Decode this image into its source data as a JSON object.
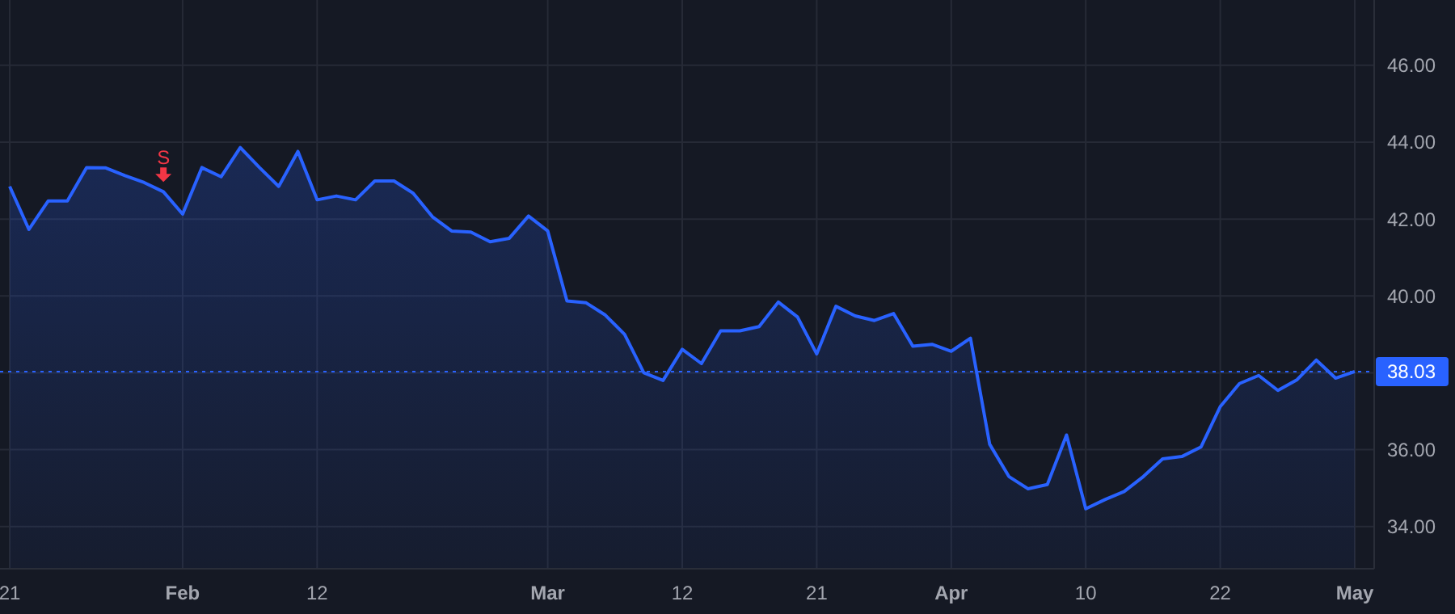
{
  "chart_data": {
    "type": "area",
    "categories": [
      "21",
      null,
      null,
      null,
      null,
      null,
      null,
      null,
      null,
      "Feb",
      null,
      null,
      null,
      null,
      null,
      null,
      "12",
      null,
      null,
      null,
      null,
      null,
      null,
      null,
      null,
      null,
      null,
      null,
      "Mar",
      null,
      null,
      null,
      null,
      null,
      null,
      "12",
      null,
      null,
      null,
      null,
      null,
      null,
      "21",
      null,
      null,
      null,
      null,
      null,
      null,
      "Apr",
      null,
      null,
      null,
      null,
      null,
      null,
      "10",
      null,
      null,
      null,
      null,
      null,
      null,
      "22",
      null,
      null,
      null,
      null,
      null,
      null,
      "May"
    ],
    "series": [
      {
        "color": "#2962ff",
        "values": [
          42.85,
          41.73,
          42.47,
          42.47,
          43.34,
          43.33,
          43.13,
          42.95,
          42.71,
          42.13,
          43.34,
          43.1,
          43.86,
          43.34,
          42.85,
          43.76,
          42.5,
          42.6,
          42.5,
          42.99,
          42.99,
          42.67,
          42.06,
          41.69,
          41.66,
          41.41,
          41.5,
          42.08,
          41.69,
          39.87,
          39.82,
          39.5,
          39.0,
          38.0,
          37.8,
          38.61,
          38.24,
          39.09,
          39.09,
          39.2,
          39.84,
          39.45,
          38.49,
          39.73,
          39.48,
          39.36,
          39.54,
          38.69,
          38.74,
          38.56,
          38.9,
          36.14,
          35.3,
          34.98,
          35.09,
          36.38,
          34.46,
          34.7,
          34.91,
          35.3,
          35.76,
          35.82,
          36.07,
          37.12,
          37.72,
          37.93,
          37.54,
          37.82,
          38.33,
          37.86,
          38.03
        ]
      }
    ],
    "ylim": [
      32.9,
      47.7
    ],
    "yticks": [
      {
        "value": 34,
        "label": "34.00"
      },
      {
        "value": 36,
        "label": "36.00"
      },
      {
        "value": 38,
        "label": null
      },
      {
        "value": 40,
        "label": "40.00"
      },
      {
        "value": 42,
        "label": "42.00"
      },
      {
        "value": 44,
        "label": "44.00"
      },
      {
        "value": 46,
        "label": "46.00"
      }
    ],
    "grid": true,
    "line_style": "solid",
    "ref_lines": [
      {
        "axis": "y",
        "value": 38.03,
        "label": "38.03",
        "color": "#2962ff",
        "line_style": "dotted"
      }
    ],
    "annotations": [
      {
        "text": "S",
        "y": 42.71
      }
    ]
  }
}
